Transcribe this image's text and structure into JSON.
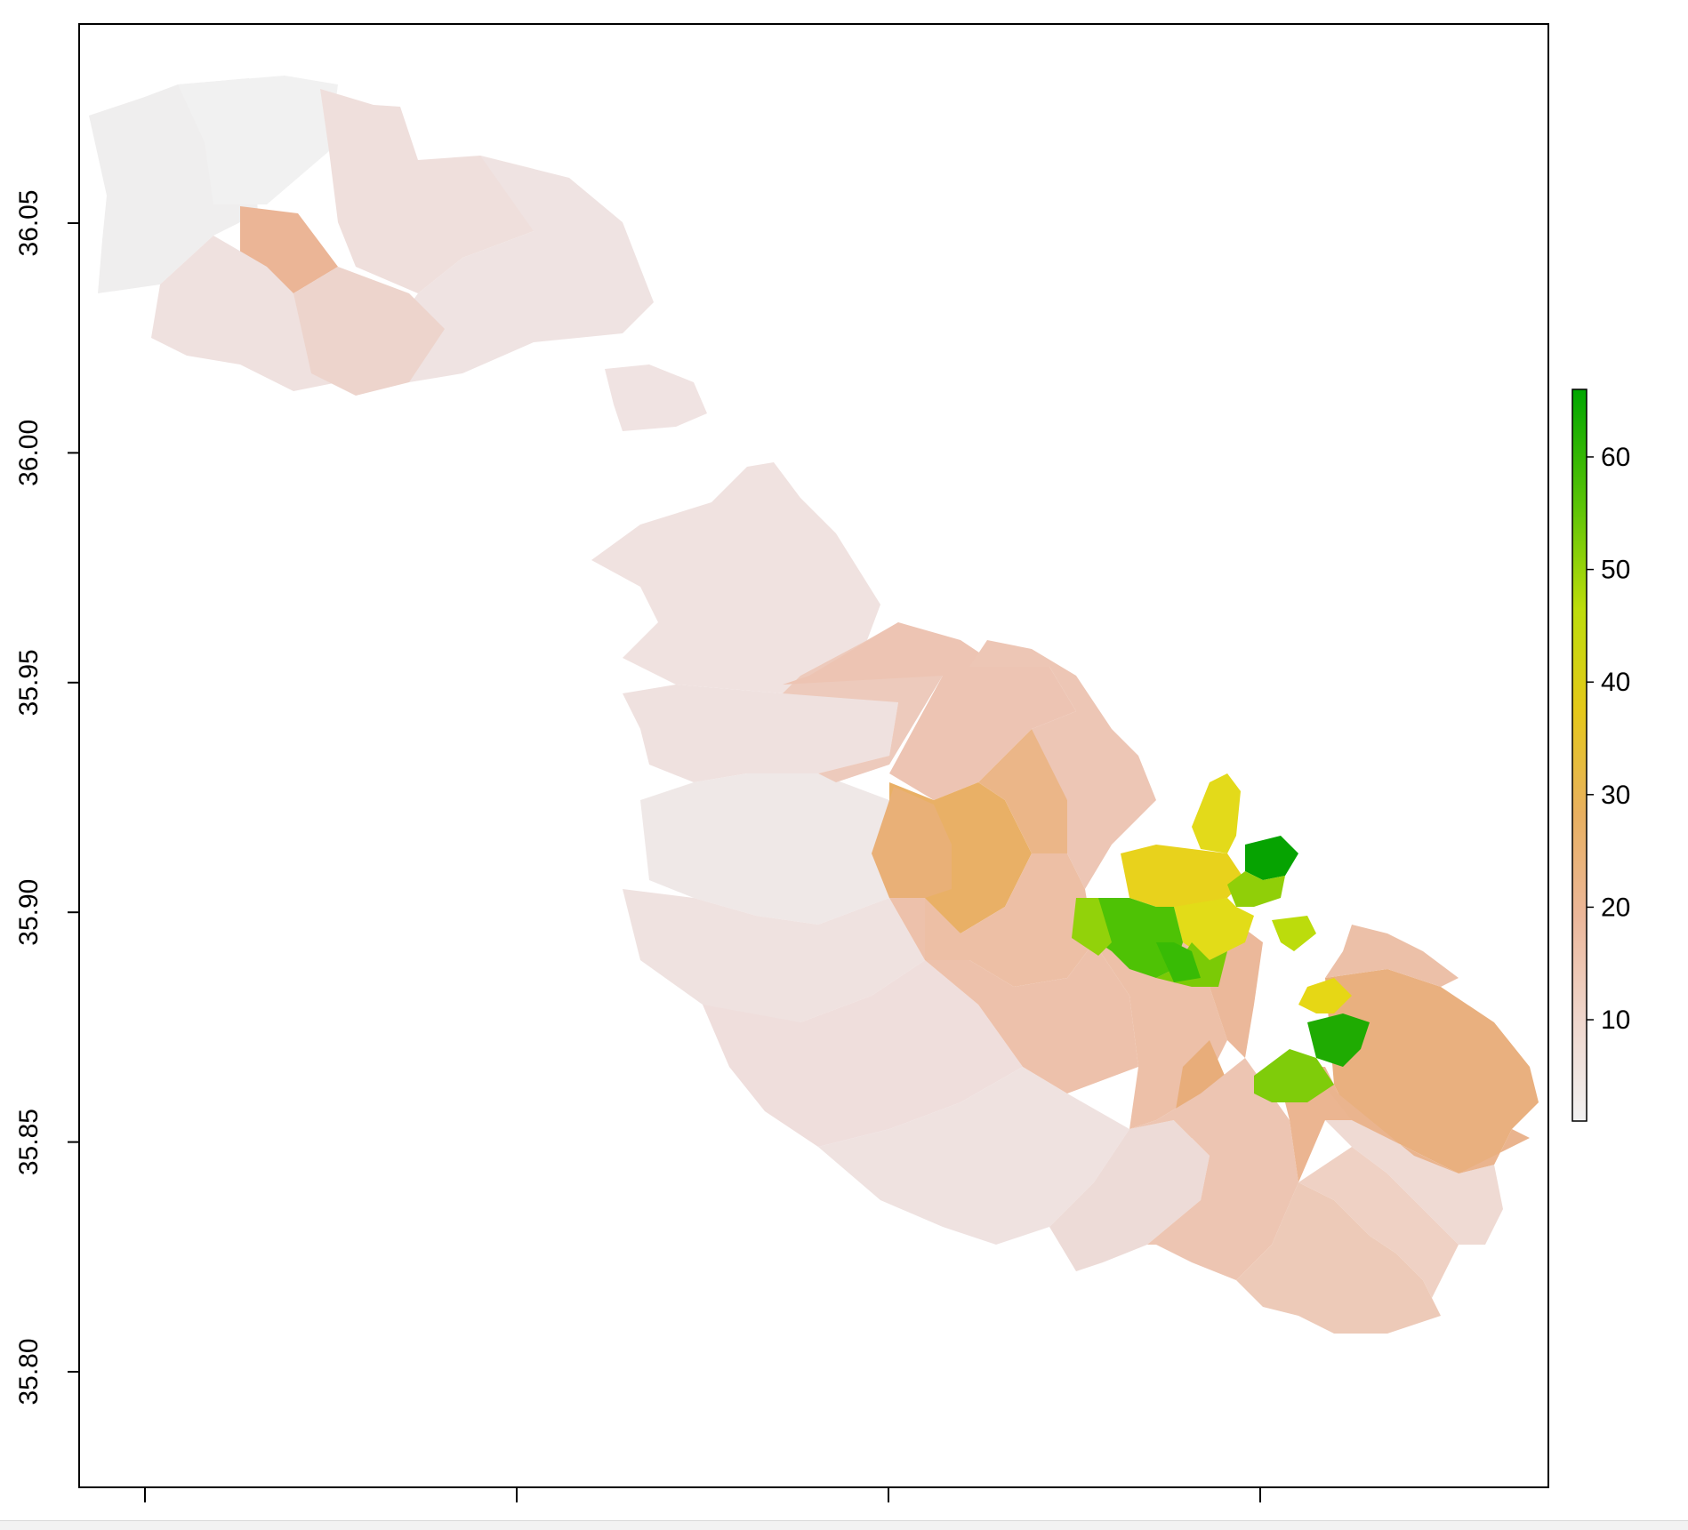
{
  "plot": {
    "type": "raster-map",
    "y_axis": {
      "ticks": [
        35.8,
        35.85,
        35.9,
        35.95,
        36.0,
        36.05
      ],
      "tick_labels": [
        "35.80",
        "35.85",
        "35.90",
        "35.95",
        "36.00",
        "36.05"
      ]
    },
    "x_axis": {
      "tick_count": 4,
      "tick_labels": []
    },
    "legend": {
      "placement": "right",
      "ticks": [
        10,
        20,
        30,
        40,
        50,
        60
      ],
      "tick_labels": [
        "10",
        "20",
        "30",
        "40",
        "50",
        "60"
      ],
      "range": [
        1,
        66
      ],
      "colors": [
        "#f2f2f2",
        "#eec9b5",
        "#ebb07f",
        "#e6c22c",
        "#c6d60c",
        "#7fcb07",
        "#3fbf06",
        "#00a600"
      ]
    }
  }
}
